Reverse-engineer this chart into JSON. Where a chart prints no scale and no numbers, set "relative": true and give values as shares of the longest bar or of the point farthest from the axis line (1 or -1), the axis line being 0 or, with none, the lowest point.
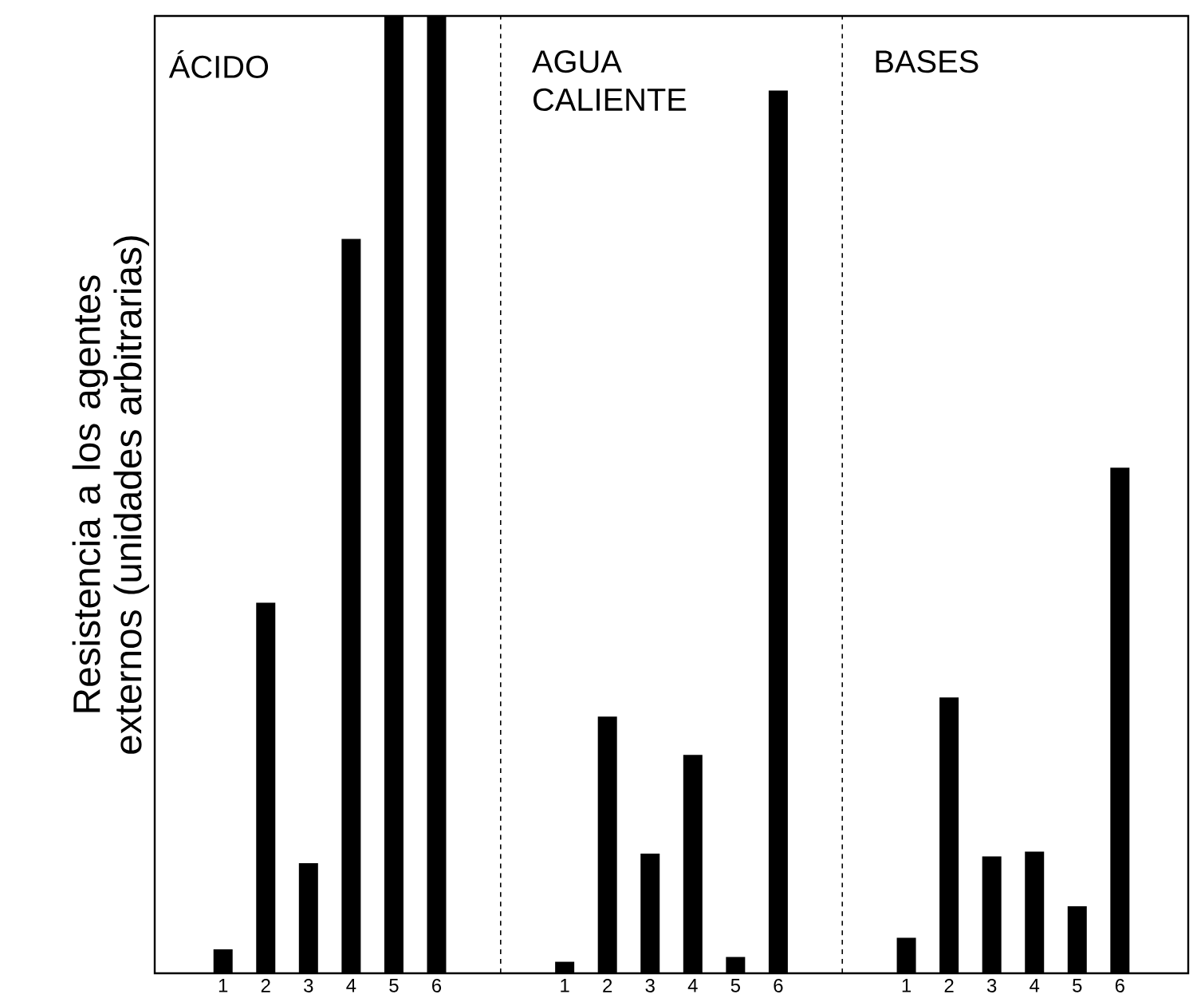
{
  "chart_data": {
    "type": "bar",
    "ylabel": "Resistencia a los agentes externos (unidades arbitrarias)",
    "categories": [
      "1",
      "2",
      "3",
      "4",
      "5",
      "6",
      null,
      null,
      "1",
      "2",
      "3",
      "4",
      "5",
      "6",
      null,
      null,
      "1",
      "2",
      "3",
      "4",
      "5",
      "6"
    ],
    "values": [
      0.025,
      0.387,
      0.115,
      0.767,
      1.0,
      1.0,
      null,
      null,
      0.012,
      0.268,
      0.125,
      0.228,
      0.017,
      0.922,
      null,
      null,
      0.037,
      0.288,
      0.122,
      0.127,
      0.07,
      0.528
    ],
    "color": "#000000",
    "relative": true,
    "annotations": [
      "ÁCIDO",
      "AGUA CALIENTE",
      "BASES"
    ]
  }
}
